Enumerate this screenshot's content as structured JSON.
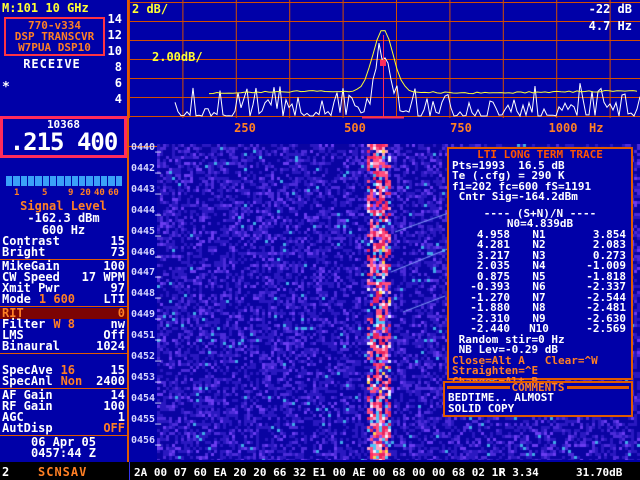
{
  "colors": {
    "background": "#0000A8",
    "accent_orange": "#FF7F24",
    "grid_orange": "#E05A00",
    "red_box": "#FF2B5C",
    "yellow": "#FFFF33",
    "maroon_highlight": "#7C0404",
    "meter_blue": "#3AA0F8"
  },
  "header": {
    "mode_line": "M:101 10 GHz",
    "receive": "RECEIVE",
    "marker": "*"
  },
  "radio_box": {
    "lines": [
      "770-v334",
      "DSP TRANSCVR",
      "W7PUA DSP10"
    ]
  },
  "frequency": {
    "band": "10368",
    "readout": ".215 400"
  },
  "smeter": {
    "segments": 16,
    "scale": [
      "1",
      "5",
      "9",
      "20",
      "40",
      "60"
    ],
    "label": "Signal Level",
    "value": "-162.3 dBm",
    "freq": "600 Hz"
  },
  "controls": {
    "groups": [
      {
        "rows": [
          {
            "l": "Contrast",
            "v": "15"
          },
          {
            "l": "Bright",
            "v": "73"
          }
        ]
      },
      {
        "rows": [
          {
            "l": "MikeGain",
            "v": "100"
          },
          {
            "l": "CW Speed",
            "v": "17 WPM"
          },
          {
            "l": "Xmit Pwr",
            "v": "97"
          },
          {
            "l": "Mode",
            "a": "1 600",
            "v": "LTI"
          }
        ]
      },
      {
        "rows": [
          {
            "l": "RIT",
            "v": "0",
            "hl": true
          },
          {
            "l": "Filter",
            "a": "W 8",
            "v": "nw"
          },
          {
            "l": "LMS",
            "v": "Off"
          },
          {
            "l": "Binaural",
            "v": "1024"
          }
        ]
      },
      {
        "gap": 10,
        "rows": [
          {
            "l": "SpecAve",
            "a": "16",
            "v": "15"
          },
          {
            "l": "SpecAnl",
            "a": "Non",
            "v": "2400"
          }
        ]
      },
      {
        "rows": [
          {
            "l": "AF Gain",
            "v": "14"
          },
          {
            "l": "RF Gain",
            "v": "100"
          },
          {
            "l": "AGC",
            "v": "1"
          },
          {
            "l": "AutDisp",
            "v": "OFF",
            "av": true
          }
        ]
      },
      {
        "rows": [
          {
            "l": "06 Apr 05",
            "center": true,
            "name": "date-display"
          },
          {
            "l": "0457:44 Z",
            "center": true,
            "name": "time-display"
          }
        ]
      }
    ]
  },
  "spectrum": {
    "scale_label": "2 dB/",
    "avg_scale_label": "2.00dB/",
    "ref_level": "-22 dB",
    "resolution": "4.7 Hz",
    "x_ticks": [
      "250",
      "500",
      "750",
      "1000"
    ],
    "x_unit": "Hz",
    "y_labels": [
      "14",
      "12",
      "10",
      "8",
      "6",
      "4"
    ],
    "peak_hz": 600
  },
  "waterfall": {
    "time_labels": [
      "0440_",
      "0442_",
      "0443_",
      "0444_",
      "0445_",
      "0446_",
      "0447_",
      "0448_",
      "0449_",
      "0451_",
      "0452_",
      "0453_",
      "0454_",
      "0455_",
      "0456_"
    ]
  },
  "lti": {
    "title": "LTI LONG TERM TRACE",
    "info": [
      "Pts=1993  16.5 dB",
      "Te (.cfg) = 290 K",
      "f1=202 fc=600 fS=1191",
      " Cntr Sig=-164.2dBm"
    ],
    "sn_header": "----  (S+N)/N  ----",
    "n0": "N0=4.839dB",
    "rows": [
      [
        "4.958",
        "N1",
        "3.854"
      ],
      [
        "4.281",
        "N2",
        "2.083"
      ],
      [
        "3.217",
        "N3",
        "0.273"
      ],
      [
        "2.035",
        "N4",
        "-1.009"
      ],
      [
        "0.875",
        "N5",
        "-1.818"
      ],
      [
        "-0.393",
        "N6",
        "-2.337"
      ],
      [
        "-1.270",
        "N7",
        "-2.544"
      ],
      [
        "-1.880",
        "N8",
        "-2.481"
      ],
      [
        "-2.310",
        "N9",
        "-2.630"
      ],
      [
        "-2.440",
        "N10",
        "-2.569"
      ]
    ],
    "status": [
      "Random stir=0 Hz",
      "NB Lev=-0.29 dB"
    ],
    "keys": [
      "Close=Alt A   Clear=^W",
      "Straighten=^E",
      "Changes=Alt B"
    ]
  },
  "comments": {
    "title": "COMMENTS",
    "lines": [
      "BEDTIME.. ALMOST",
      "SOLID COPY"
    ]
  },
  "bottom": {
    "counter": "2",
    "scan_label": "SCNSAV",
    "hex": "2A 00 07 60 EA 20 20 66 32 E1 00 AE 00 68 00 00 68 02 1F",
    "r_value": "R 3.34",
    "db_value": "31.70dB"
  }
}
